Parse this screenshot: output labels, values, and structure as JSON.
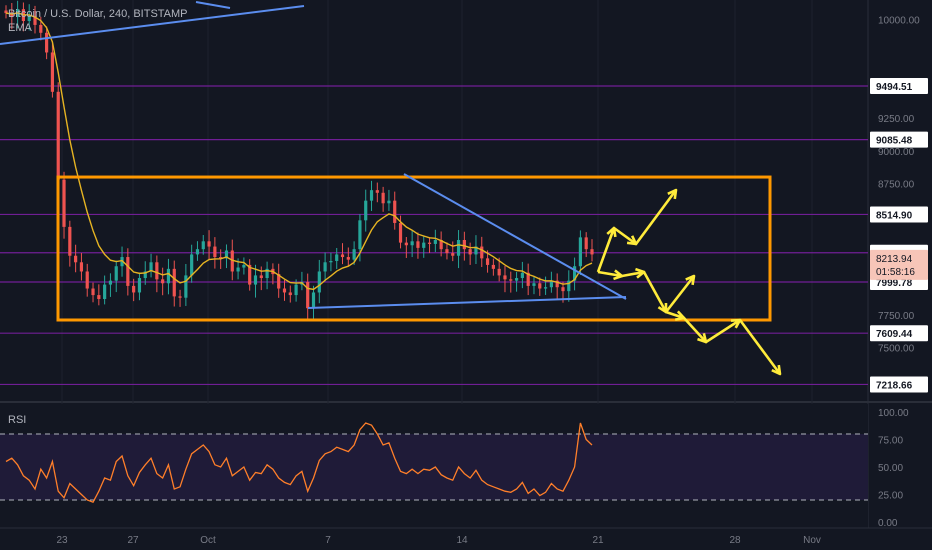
{
  "header": {
    "symbol": "Bitcoin / U.S. Dollar, 240, BITSTAMP",
    "indicator": "EMA"
  },
  "colors": {
    "background": "#131722",
    "up": "#26a69a",
    "down": "#ef5350",
    "box": "#ff9800",
    "trendline": "#5b8def",
    "arrow": "#ffeb3b",
    "hline": "#7b1fa2",
    "rsi": "#ff7f2a",
    "ema": "#e6b422"
  },
  "chart_data": [
    {
      "type": "candlestick",
      "title": "",
      "y_ticks": [
        "10000.00",
        "9250.00",
        "9000.00",
        "8750.00",
        "7750.00",
        "7500.00"
      ],
      "x_ticks": [
        "23",
        "27",
        "Oct",
        "7",
        "14",
        "21",
        "28",
        "Nov"
      ],
      "ylim": [
        7100,
        10150
      ],
      "price_levels": [
        "9494.51",
        "9085.48",
        "8514.90",
        "8222.74",
        "7999.78",
        "7609.44",
        "7218.66"
      ],
      "last_price": "8213.94",
      "countdown": "01:58:16",
      "range_box": {
        "top": 8800,
        "bottom": 7710
      },
      "series_close": [
        10050,
        10020,
        10080,
        9990,
        10030,
        9960,
        9900,
        9750,
        9450,
        8780,
        8420,
        8200,
        8150,
        8080,
        7950,
        7900,
        7870,
        7980,
        8010,
        8120,
        8190,
        7970,
        7920,
        8030,
        8080,
        8150,
        8020,
        7990,
        8100,
        7890,
        7880,
        8050,
        8210,
        8250,
        8310,
        8270,
        8190,
        8180,
        8240,
        8080,
        8110,
        8130,
        7980,
        8050,
        8030,
        8100,
        8060,
        7950,
        7920,
        7900,
        7980,
        8000,
        7800,
        7920,
        8080,
        8150,
        8160,
        8210,
        8190,
        8170,
        8250,
        8470,
        8620,
        8700,
        8680,
        8600,
        8620,
        8450,
        8300,
        8280,
        8310,
        8260,
        8300,
        8290,
        8320,
        8250,
        8220,
        8200,
        8320,
        8250,
        8210,
        8270,
        8180,
        8130,
        8100,
        8050,
        8020,
        8010,
        8030,
        8070,
        7970,
        7990,
        7950,
        7960,
        8010,
        7960,
        7930,
        8010,
        8120,
        8340,
        8250,
        8210
      ]
    },
    {
      "type": "line",
      "title": "RSI",
      "y_ticks": [
        "100.00",
        "75.00",
        "50.00",
        "25.00",
        "0.00"
      ],
      "ylim": [
        0,
        100
      ],
      "bands": [
        80,
        20
      ],
      "values": [
        55,
        58,
        52,
        42,
        38,
        30,
        48,
        40,
        55,
        28,
        22,
        35,
        30,
        25,
        20,
        18,
        28,
        40,
        38,
        55,
        60,
        42,
        33,
        45,
        52,
        58,
        44,
        40,
        52,
        30,
        32,
        48,
        62,
        66,
        70,
        64,
        52,
        50,
        58,
        42,
        46,
        50,
        38,
        45,
        44,
        52,
        48,
        40,
        36,
        34,
        42,
        46,
        28,
        40,
        56,
        62,
        64,
        68,
        66,
        64,
        70,
        84,
        90,
        88,
        80,
        70,
        72,
        58,
        46,
        44,
        48,
        44,
        48,
        47,
        50,
        43,
        40,
        38,
        50,
        44,
        40,
        47,
        38,
        34,
        32,
        30,
        28,
        27,
        30,
        36,
        26,
        30,
        24,
        27,
        35,
        30,
        28,
        38,
        50,
        90,
        75,
        70
      ]
    }
  ]
}
